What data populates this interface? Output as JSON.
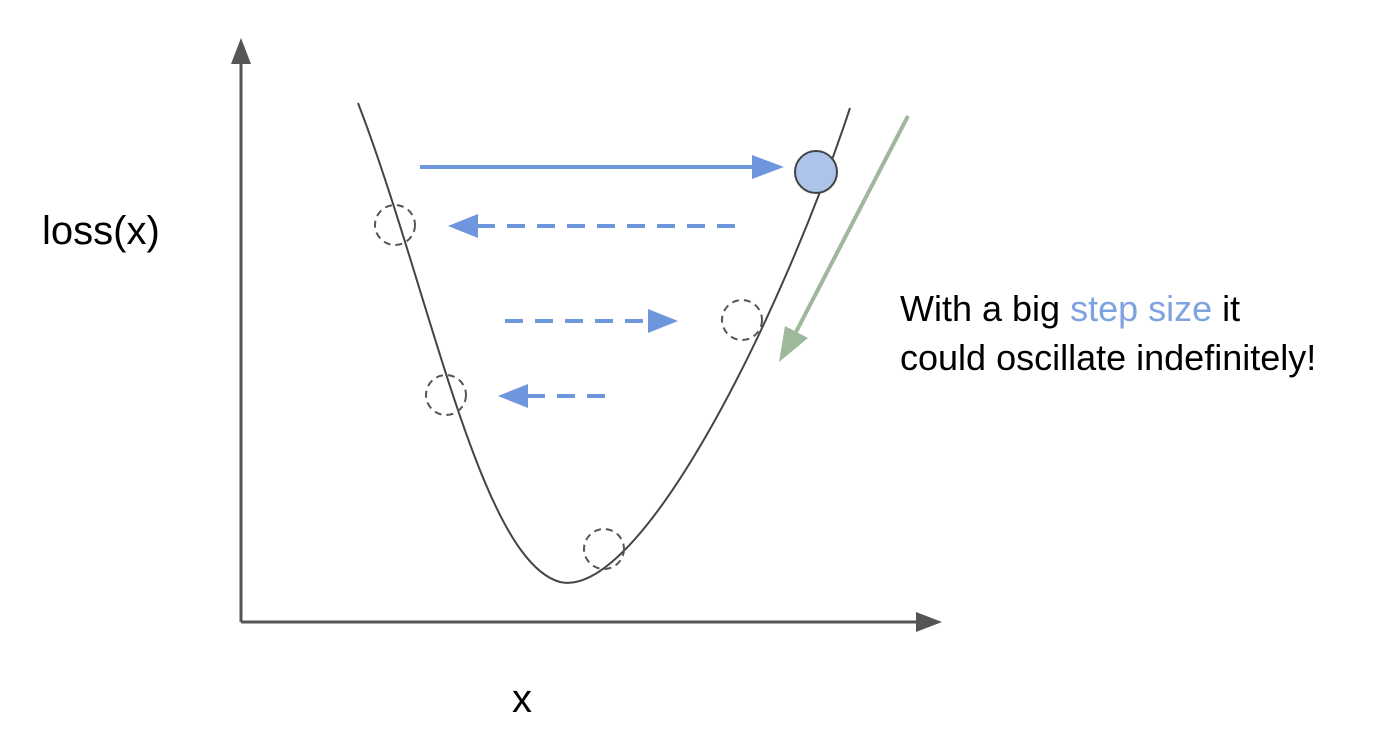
{
  "labels": {
    "y_axis": "loss(x)",
    "x_axis": "x"
  },
  "annotation": {
    "line1_before": "With a big ",
    "line1_highlight": "step size",
    "line1_after": " it",
    "line2": "could oscillate indefinitely!"
  },
  "colors": {
    "axis": "#555555",
    "curve": "#444444",
    "step_arrow": "#6d96dc",
    "highlight_text": "#7ea3e0",
    "ball_fill": "#aec3ea",
    "ball_stroke": "#444444",
    "ghost_circle": "#555555",
    "descent_arrow": "#9db89a"
  },
  "icons": {
    "current_point": "filled-circle",
    "previous_points": "dashed-circle",
    "steps": "arrow"
  }
}
